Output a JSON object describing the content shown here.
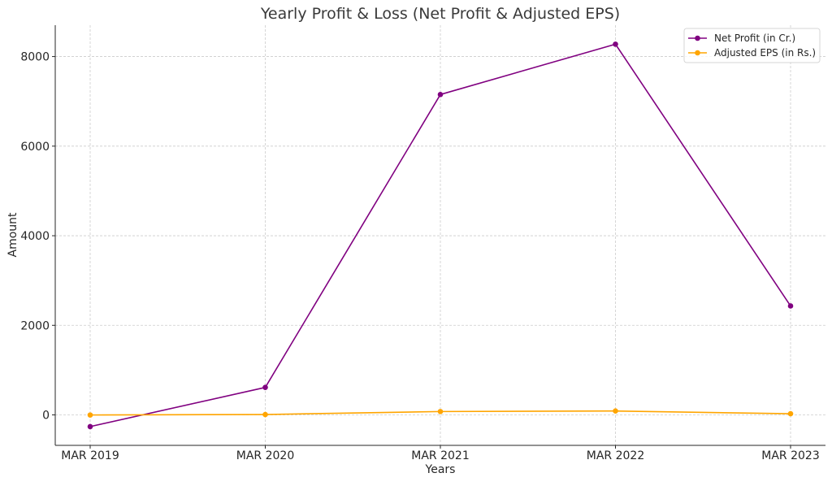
{
  "chart_data": {
    "type": "line",
    "title": "Yearly Profit & Loss (Net Profit & Adjusted EPS)",
    "xlabel": "Years",
    "ylabel": "Amount",
    "categories": [
      "MAR 2019",
      "MAR 2020",
      "MAR 2021",
      "MAR 2022",
      "MAR 2023"
    ],
    "yticks": [
      0,
      2000,
      4000,
      6000,
      8000
    ],
    "ylim": [
      -680,
      8700
    ],
    "grid": true,
    "legend_position": "top-right",
    "series": [
      {
        "name": "Net Profit (in Cr.)",
        "color": "#800080",
        "values": [
          -261,
          614,
          7152,
          8276,
          2432
        ]
      },
      {
        "name": "Adjusted EPS (in Rs.)",
        "color": "#FFA500",
        "values": [
          -2,
          9,
          75,
          87,
          26
        ]
      }
    ]
  }
}
